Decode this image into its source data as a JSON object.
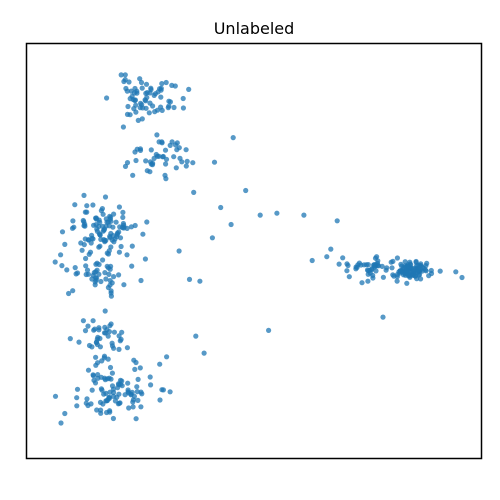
{
  "chart_data": {
    "type": "scatter",
    "title": "Unlabeled",
    "xlabel": "",
    "ylabel": "",
    "xlim": [
      0,
      100
    ],
    "ylim": [
      0,
      100
    ],
    "grid": false,
    "legend": "none",
    "axis_ticks": false,
    "point_color": "#1f77b4",
    "point_alpha": 0.75,
    "clusters": [
      {
        "center": [
          24.5,
          90.5
        ],
        "spread": [
          7.0,
          4.5
        ],
        "count": 70,
        "seed": 11
      },
      {
        "center": [
          27.0,
          75.0
        ],
        "spread": [
          6.0,
          4.0
        ],
        "count": 45,
        "seed": 12
      },
      {
        "center": [
          13.5,
          56.0
        ],
        "spread": [
          7.0,
          5.5
        ],
        "count": 95,
        "seed": 21
      },
      {
        "center": [
          12.5,
          45.0
        ],
        "spread": [
          5.5,
          5.0
        ],
        "count": 55,
        "seed": 22
      },
      {
        "center": [
          16.0,
          13.0
        ],
        "spread": [
          8.0,
          6.0
        ],
        "count": 95,
        "seed": 31
      },
      {
        "center": [
          14.0,
          27.0
        ],
        "spread": [
          6.0,
          5.0
        ],
        "count": 45,
        "seed": 32
      },
      {
        "center": [
          80.0,
          45.5
        ],
        "spread": [
          7.5,
          3.0
        ],
        "count": 60,
        "seed": 41
      },
      {
        "center": [
          88.0,
          45.0
        ],
        "spread": [
          3.2,
          1.8
        ],
        "count": 80,
        "seed": 42
      }
    ],
    "extra_points": [
      [
        45.0,
        80.0
      ],
      [
        40.5,
        73.5
      ],
      [
        35.5,
        65.5
      ],
      [
        42.0,
        61.5
      ],
      [
        44.5,
        57.0
      ],
      [
        51.5,
        59.5
      ],
      [
        55.5,
        60.0
      ],
      [
        40.0,
        53.5
      ],
      [
        34.5,
        42.5
      ],
      [
        37.0,
        42.0
      ],
      [
        32.0,
        50.0
      ],
      [
        67.5,
        48.5
      ],
      [
        64.0,
        47.5
      ],
      [
        62.0,
        59.5
      ],
      [
        70.0,
        58.0
      ],
      [
        53.5,
        29.0
      ],
      [
        81.0,
        32.5
      ],
      [
        36.0,
        27.5
      ],
      [
        38.0,
        23.0
      ],
      [
        100.0,
        43.0
      ],
      [
        98.5,
        44.5
      ],
      [
        5.0,
        45.0
      ],
      [
        3.5,
        49.0
      ],
      [
        48.0,
        66.0
      ],
      [
        29.0,
        22.0
      ]
    ]
  }
}
